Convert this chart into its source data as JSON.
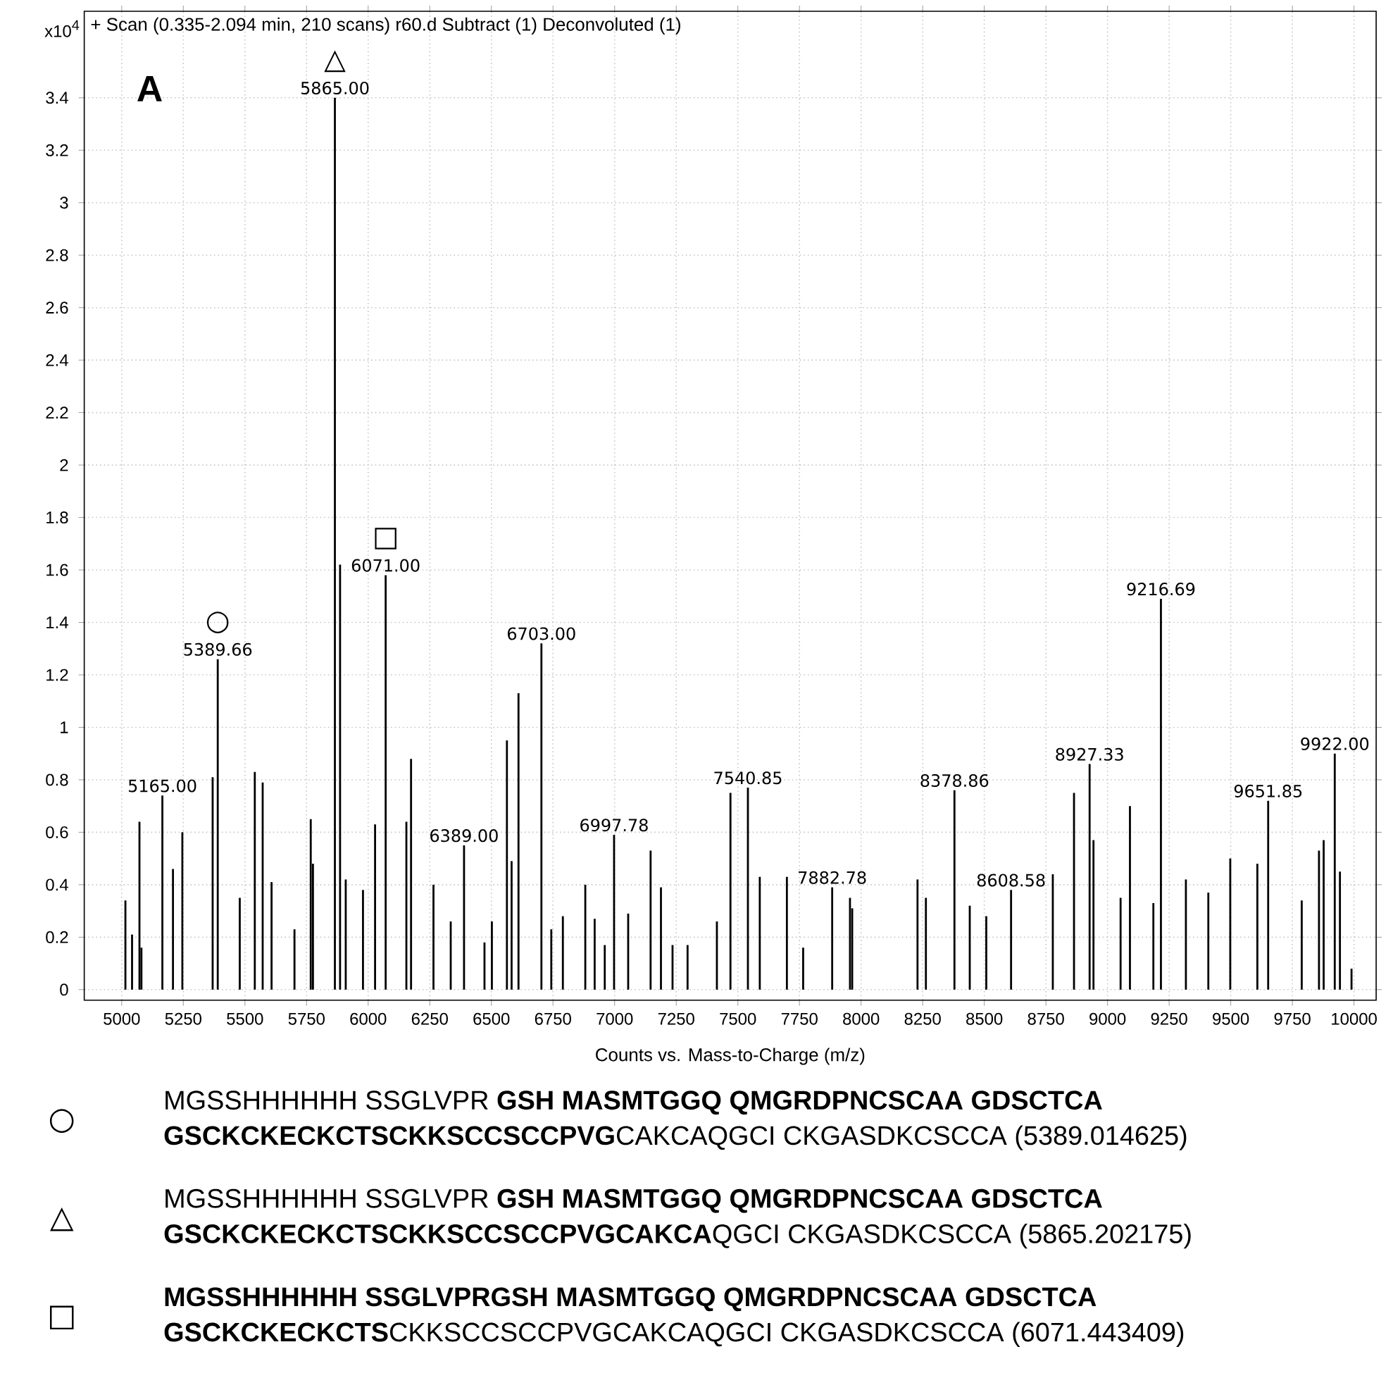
{
  "chart_data": {
    "type": "bar",
    "title": "+ Scan (0.335-2.094 min, 210 scans) r60.d Subtract (1) Deconvoluted (1)",
    "xlabel": "Counts vs. Mass-to-Charge (m/z)",
    "ylabel": "x10$^{4}$",
    "x": [
      5015,
      5042,
      5072,
      5080,
      5165,
      5208,
      5246,
      5369,
      5389.66,
      5479,
      5540,
      5572,
      5608,
      5701,
      5767,
      5776,
      5865,
      5886,
      5909,
      5979,
      6028,
      6071,
      6155,
      6174,
      6265,
      6335,
      6389,
      6472,
      6502,
      6563,
      6582,
      6610,
      6703,
      6743,
      6790,
      6881,
      6919,
      6960,
      6997.78,
      7055,
      7146,
      7188,
      7235,
      7296,
      7415,
      7470,
      7540.85,
      7589,
      7699,
      7765,
      7882.78,
      7955,
      7964,
      8229,
      8263,
      8378.86,
      8441,
      8508,
      8608.58,
      8778,
      8864,
      8927.33,
      8943,
      9053,
      9091,
      9186,
      9216.69,
      9318,
      9409,
      9498,
      9608,
      9651.85,
      9788,
      9858,
      9877,
      9922,
      9943,
      9990
    ],
    "values": [
      0.34,
      0.21,
      0.64,
      0.16,
      0.74,
      0.46,
      0.6,
      0.81,
      1.26,
      0.35,
      0.83,
      0.79,
      0.41,
      0.23,
      0.65,
      0.48,
      3.4,
      1.62,
      0.42,
      0.38,
      0.63,
      1.58,
      0.64,
      0.88,
      0.4,
      0.26,
      0.55,
      0.18,
      0.26,
      0.95,
      0.49,
      1.13,
      1.32,
      0.23,
      0.28,
      0.4,
      0.27,
      0.17,
      0.59,
      0.29,
      0.53,
      0.39,
      0.17,
      0.17,
      0.26,
      0.75,
      0.77,
      0.43,
      0.43,
      0.16,
      0.39,
      0.35,
      0.31,
      0.42,
      0.35,
      0.76,
      0.32,
      0.28,
      0.38,
      0.44,
      0.75,
      0.86,
      0.57,
      0.35,
      0.7,
      0.33,
      1.49,
      0.42,
      0.37,
      0.5,
      0.48,
      0.72,
      0.34,
      0.53,
      0.57,
      0.9,
      0.45,
      0.08
    ],
    "color": "#000000",
    "xlim": [
      4848,
      10090
    ],
    "ylim": [
      -0.04,
      3.73
    ],
    "xticks": [
      5000,
      5250,
      5500,
      5750,
      6000,
      6250,
      6500,
      6750,
      7000,
      7250,
      7500,
      7750,
      8000,
      8250,
      8500,
      8750,
      9000,
      9250,
      9500,
      9750,
      10000
    ],
    "yticks": [
      0,
      0.2,
      0.4,
      0.6,
      0.8,
      1,
      1.2,
      1.4,
      1.6,
      1.8,
      2,
      2.2,
      2.4,
      2.6,
      2.8,
      3,
      3.2,
      3.4
    ],
    "grid": true,
    "annotations": [
      {
        "text": "5165.00",
        "x": 5165,
        "y": 0.74
      },
      {
        "text": "5389.66",
        "x": 5389.66,
        "y": 1.26
      },
      {
        "text": "5865.00",
        "x": 5865,
        "y": 3.4
      },
      {
        "text": "6071.00",
        "x": 6071,
        "y": 1.58
      },
      {
        "text": "6389.00",
        "x": 6389,
        "y": 0.55
      },
      {
        "text": "6703.00",
        "x": 6703,
        "y": 1.32
      },
      {
        "text": "6997.78",
        "x": 6997.78,
        "y": 0.59
      },
      {
        "text": "7540.85",
        "x": 7540.85,
        "y": 0.77
      },
      {
        "text": "7882.78",
        "x": 7882.78,
        "y": 0.39
      },
      {
        "text": "8378.86",
        "x": 8378.86,
        "y": 0.76
      },
      {
        "text": "8608.58",
        "x": 8608.58,
        "y": 0.38
      },
      {
        "text": "8927.33",
        "x": 8927.33,
        "y": 0.86
      },
      {
        "text": "9216.69",
        "x": 9216.69,
        "y": 1.49
      },
      {
        "text": "9651.85",
        "x": 9651.85,
        "y": 0.72
      },
      {
        "text": "9922.00",
        "x": 9922,
        "y": 0.9
      },
      {
        "text": "○",
        "x": 5389.66,
        "y": 1.26
      },
      {
        "text": "△",
        "x": 5865,
        "y": 3.4
      },
      {
        "text": "□",
        "x": 6071,
        "y": 1.58
      },
      "A",
      "○",
      "MGSSHHHHHH SSGLVPR **GSH MASMTGGQ QMGRDPNCSCAA GDSCTCA**",
      "**GSCKCKECKCTSCKKSCCSCCPVG**CAKCAQGCI CKGASDKCSCCA (5389.014625)",
      "△",
      "MGSSHHHHHH SSGLVPR **GSH MASMTGGQ QMGRDPNCSCAA GDSCTCA**",
      "**GSCKCKECKCTSCKKSCCSCCPVGCAKCA**QGCI CKGASDKCSCCA (5865.202175)",
      "□",
      "**MGSSHHHHHH SSGLVPRGSH MASMTGGQ QMGRDPNCSCAA GDSCTCA**",
      "**GSCKCKECKCTS**CKKSCCSCCPVGCAKCAQGCI CKGASDKCSCCA (6071.443409)"
    ]
  }
}
